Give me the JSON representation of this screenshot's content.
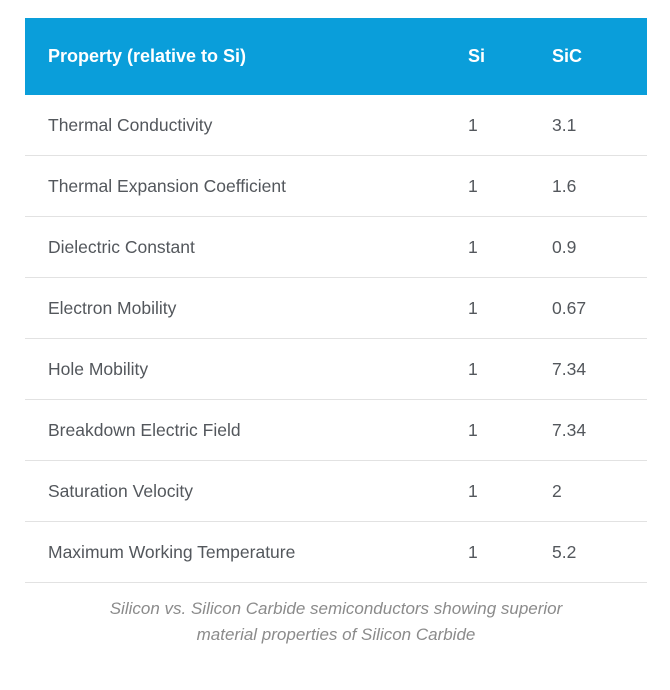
{
  "colors": {
    "header_bg": "#0a9eda",
    "header_text": "#ffffff",
    "row_text": "#53575c",
    "divider": "#e2e2e2",
    "caption_text": "#8b8b8b"
  },
  "table": {
    "headers": {
      "property": "Property (relative to Si)",
      "si": "Si",
      "sic": "SiC"
    },
    "rows": [
      {
        "property": "Thermal Conductivity",
        "si": "1",
        "sic": "3.1"
      },
      {
        "property": "Thermal Expansion Coefficient",
        "si": "1",
        "sic": "1.6"
      },
      {
        "property": "Dielectric Constant",
        "si": "1",
        "sic": "0.9"
      },
      {
        "property": "Electron Mobility",
        "si": "1",
        "sic": "0.67"
      },
      {
        "property": "Hole Mobility",
        "si": "1",
        "sic": "7.34"
      },
      {
        "property": "Breakdown Electric Field",
        "si": "1",
        "sic": "7.34"
      },
      {
        "property": "Saturation Velocity",
        "si": "1",
        "sic": "2"
      },
      {
        "property": "Maximum Working Temperature",
        "si": "1",
        "sic": "5.2"
      }
    ],
    "caption": "Silicon vs. Silicon Carbide semiconductors showing superior material properties of Silicon Carbide"
  },
  "chart_data": {
    "type": "table",
    "columns": [
      "Property (relative to Si)",
      "Si",
      "SiC"
    ],
    "rows": [
      [
        "Thermal Conductivity",
        1,
        3.1
      ],
      [
        "Thermal Expansion Coefficient",
        1,
        1.6
      ],
      [
        "Dielectric Constant",
        1,
        0.9
      ],
      [
        "Electron Mobility",
        1,
        0.67
      ],
      [
        "Hole Mobility",
        1,
        7.34
      ],
      [
        "Breakdown Electric Field",
        1,
        7.34
      ],
      [
        "Saturation Velocity",
        1,
        2
      ],
      [
        "Maximum Working Temperature",
        1,
        5.2
      ]
    ],
    "caption": "Silicon vs. Silicon Carbide semiconductors showing superior material properties of Silicon Carbide",
    "layout_hints": {
      "header_style": "solid blue bar, white bold text",
      "row_dividers": "1px light gray bottom borders",
      "value_columns_alignment": "left"
    }
  }
}
